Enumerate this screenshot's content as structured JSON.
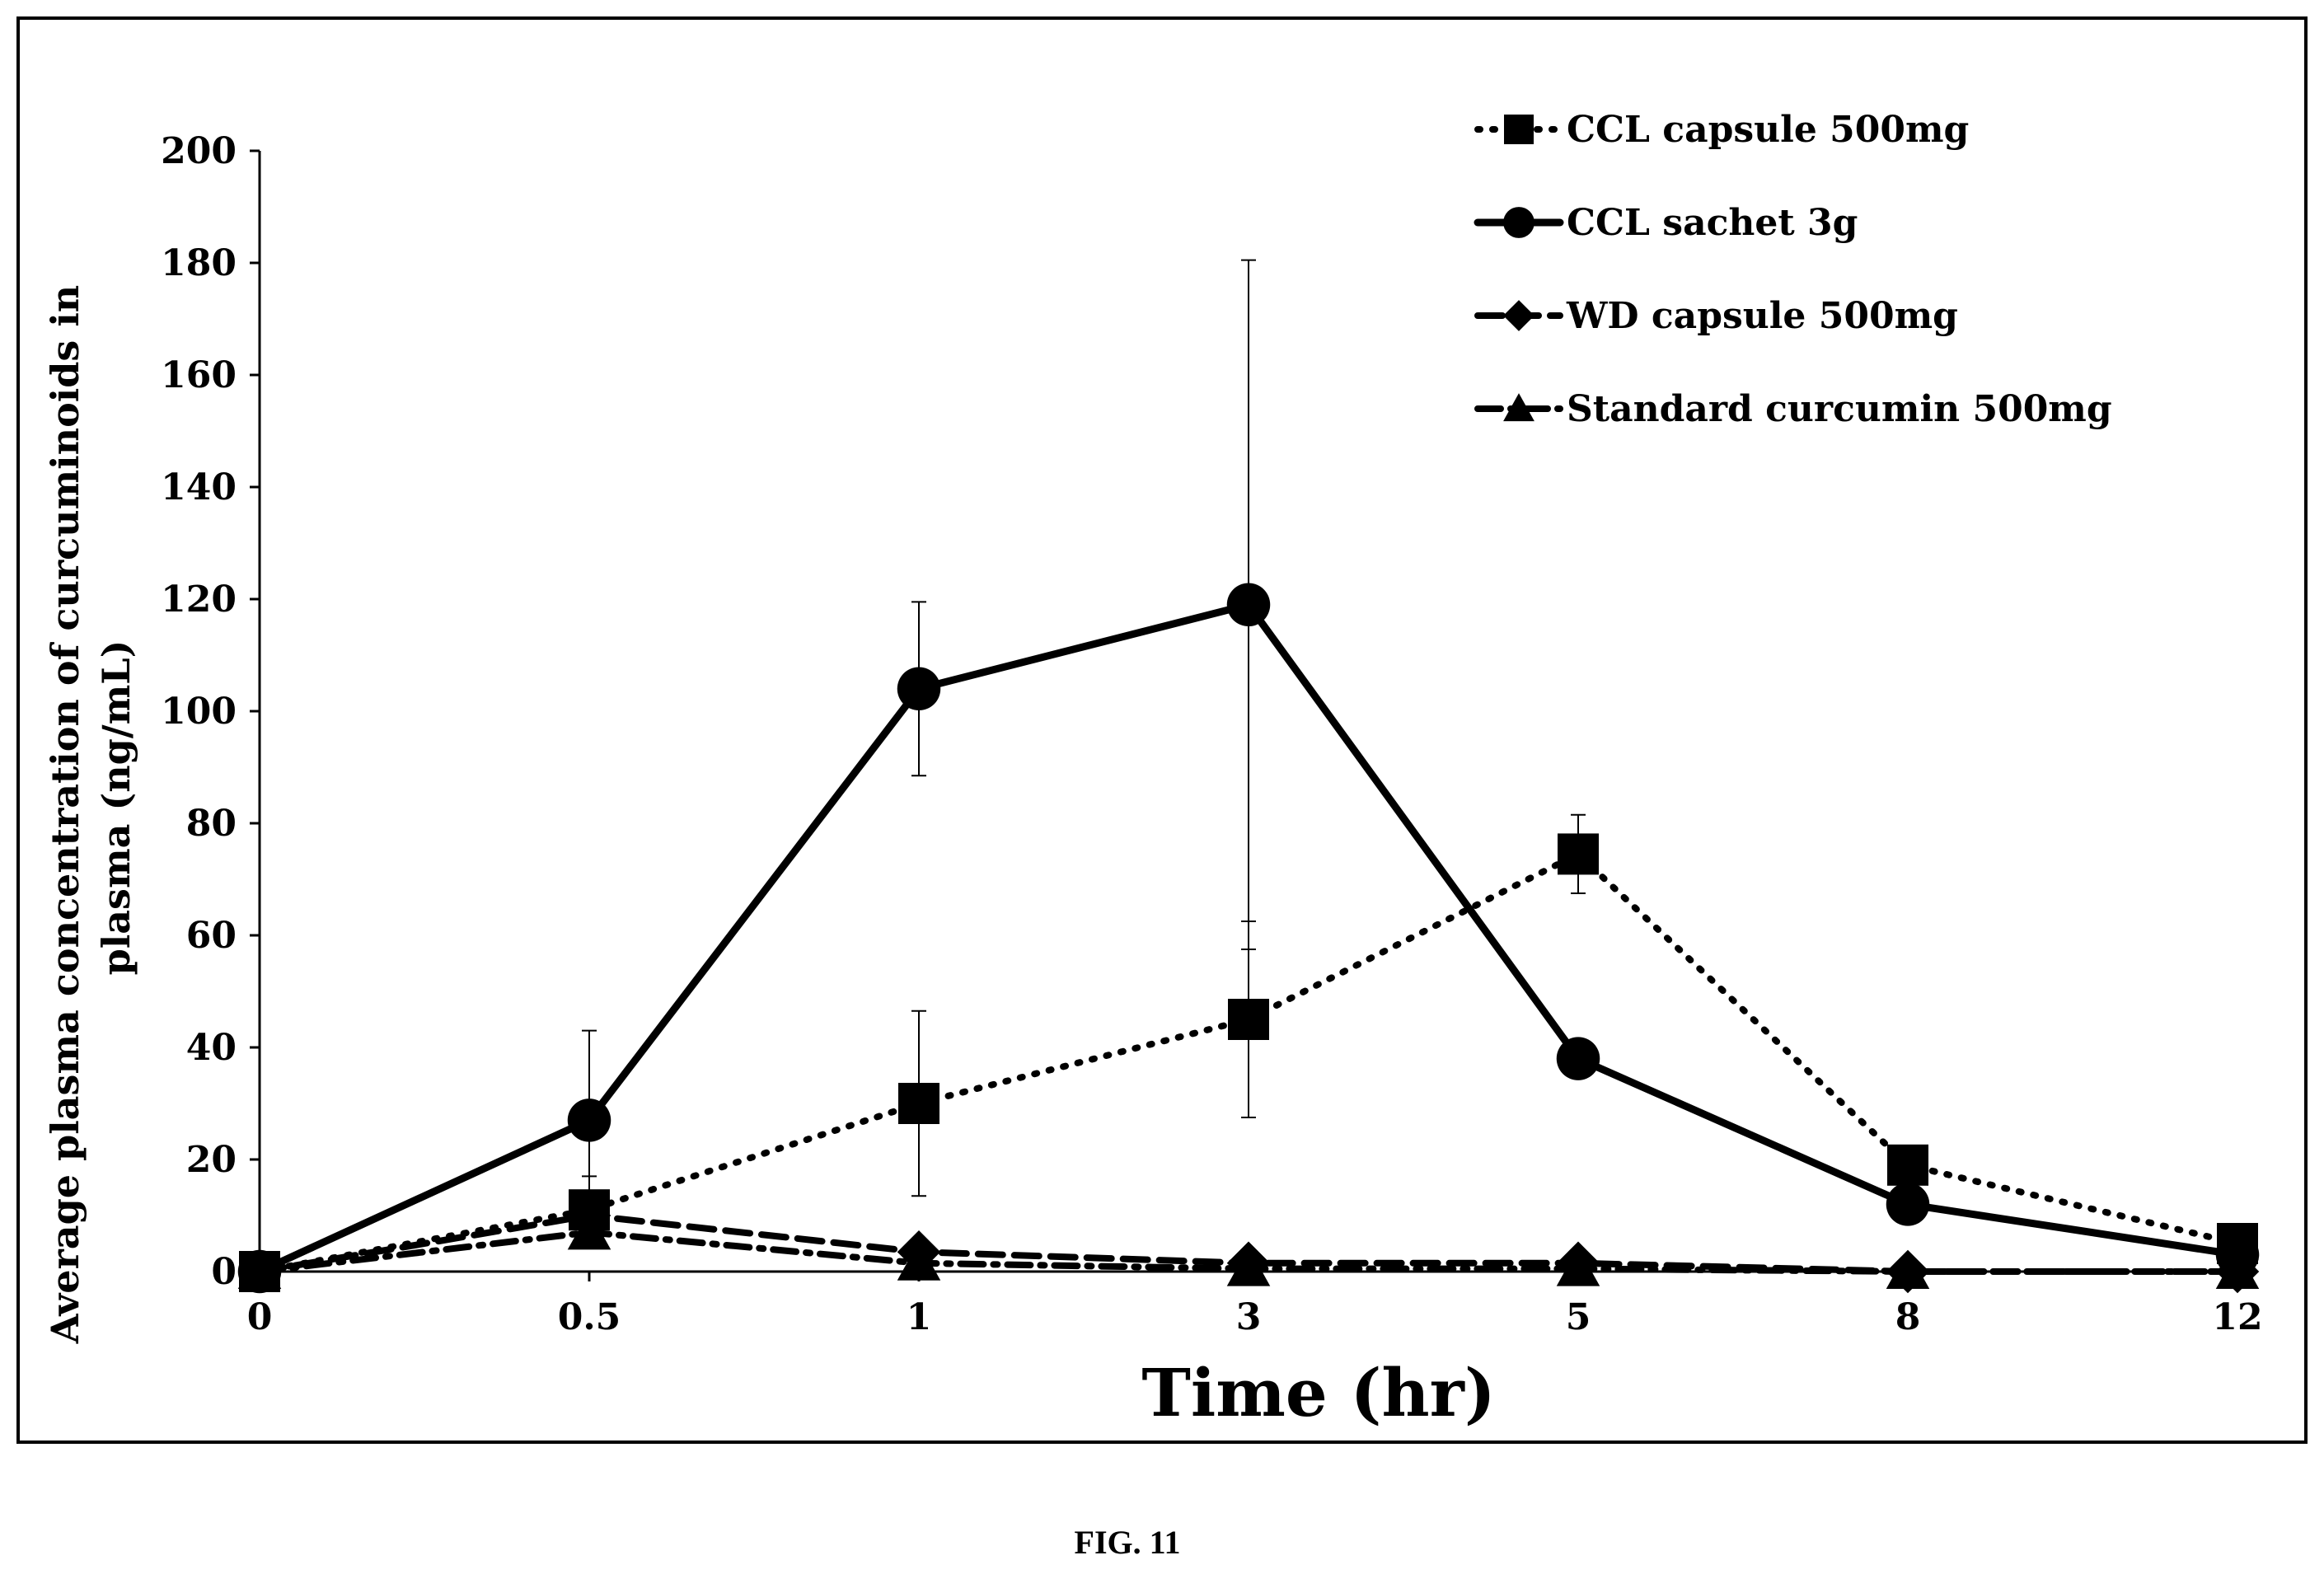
{
  "caption": "FIG. 11",
  "chart_data": {
    "type": "line",
    "xlabel": "Time (hr)",
    "ylabel_lines": [
      "Average plasma concentration of curcuminoids in",
      "plasma (ng/mL)"
    ],
    "categories": [
      "0",
      "0.5",
      "1",
      "3",
      "5",
      "8",
      "12"
    ],
    "ylim": [
      0,
      200
    ],
    "yticks": [
      0,
      20,
      40,
      60,
      80,
      100,
      120,
      140,
      160,
      180,
      200
    ],
    "grid": false,
    "legend_position": "top-right",
    "series": [
      {
        "name": "CCL capsule 500mg",
        "marker": "square",
        "line": "dotted",
        "values": [
          0,
          11,
          30,
          45,
          74.5,
          19,
          5
        ],
        "errors": [
          0,
          6,
          16.5,
          17.5,
          7,
          0,
          0
        ]
      },
      {
        "name": "CCL sachet 3g",
        "marker": "circle",
        "line": "solid",
        "values": [
          0,
          27,
          104,
          119,
          38,
          12,
          3
        ],
        "errors": [
          0,
          16,
          15.5,
          61.5,
          0,
          0,
          0
        ]
      },
      {
        "name": "WD capsule 500mg",
        "marker": "diamond",
        "line": "dashed",
        "values": [
          0,
          10,
          3.5,
          1.5,
          1.5,
          0,
          0
        ],
        "errors": [
          0,
          0,
          0,
          0,
          0,
          0,
          0
        ]
      },
      {
        "name": "Standard curcumin  500mg",
        "marker": "triangle",
        "line": "dashdot",
        "values": [
          0,
          7,
          1.5,
          0.5,
          0.5,
          0,
          0
        ],
        "errors": [
          0,
          0,
          0,
          0,
          0,
          0,
          0
        ]
      }
    ]
  }
}
